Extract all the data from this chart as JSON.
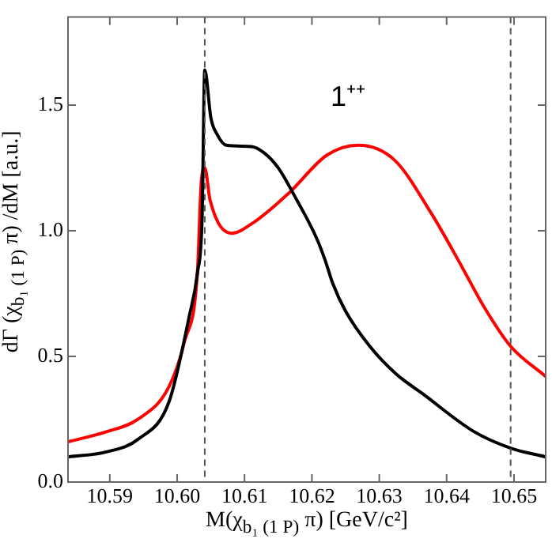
{
  "chart_data": {
    "type": "line",
    "xlabel": "M(χ$_{b₁ (1 P)}$ π)  [GeV/c²]",
    "ylabel": "dΓ (χ$_{b₁ (1 P)}$ π) /dM  [a.u.]",
    "annotations": [
      "1⁺⁺"
    ],
    "xlim": [
      10.5838,
      10.6547
    ],
    "ylim": [
      0,
      1.85
    ],
    "xticks": [
      10.59,
      {
        "value": 10.6,
        "label": "10.60"
      },
      10.61,
      10.62,
      10.63,
      10.64,
      10.65
    ],
    "yticks": [
      {
        "value": 0,
        "label": "0.0"
      },
      0.5,
      {
        "value": 1,
        "label": "1.0"
      },
      1.5
    ],
    "grid": false,
    "legend": false,
    "marker": "none",
    "line_style": "solid",
    "ref_lines": [
      {
        "axis": "x",
        "value": 10.6041,
        "color": "#555555",
        "line_style": "dashed"
      },
      {
        "axis": "x",
        "value": 10.6495,
        "color": "#555555",
        "line_style": "dashed"
      }
    ],
    "series": [
      {
        "color": "#000000",
        "x": [
          10.5838,
          10.5895,
          10.5942,
          10.5988,
          10.6018,
          10.603,
          10.6037,
          10.6041,
          10.605,
          10.606,
          10.6073,
          10.611,
          10.6129,
          10.615,
          10.6176,
          10.6207,
          10.622,
          10.6231,
          10.625,
          10.6286,
          10.6325,
          10.6365,
          10.6441,
          10.6495,
          10.6547
        ],
        "values": [
          0.1,
          0.12,
          0.17,
          0.32,
          0.66,
          0.83,
          1.05,
          1.64,
          1.45,
          1.38,
          1.34,
          1.335,
          1.31,
          1.25,
          1.13,
          0.97,
          0.88,
          0.79,
          0.68,
          0.54,
          0.43,
          0.35,
          0.2,
          0.135,
          0.1
        ]
      },
      {
        "color": "#ff0000",
        "x": [
          10.5838,
          10.5895,
          10.5942,
          10.5988,
          10.6011,
          10.603,
          10.6036,
          10.6041,
          10.6049,
          10.6081,
          10.6112,
          10.6166,
          10.6222,
          10.6269,
          10.6323,
          10.6377,
          10.6424,
          10.6457,
          10.6495,
          10.6547
        ],
        "values": [
          0.16,
          0.2,
          0.25,
          0.38,
          0.56,
          0.83,
          1.2,
          1.25,
          1.12,
          0.99,
          1.03,
          1.15,
          1.3,
          1.34,
          1.28,
          1.07,
          0.85,
          0.69,
          0.54,
          0.42
        ]
      }
    ]
  }
}
